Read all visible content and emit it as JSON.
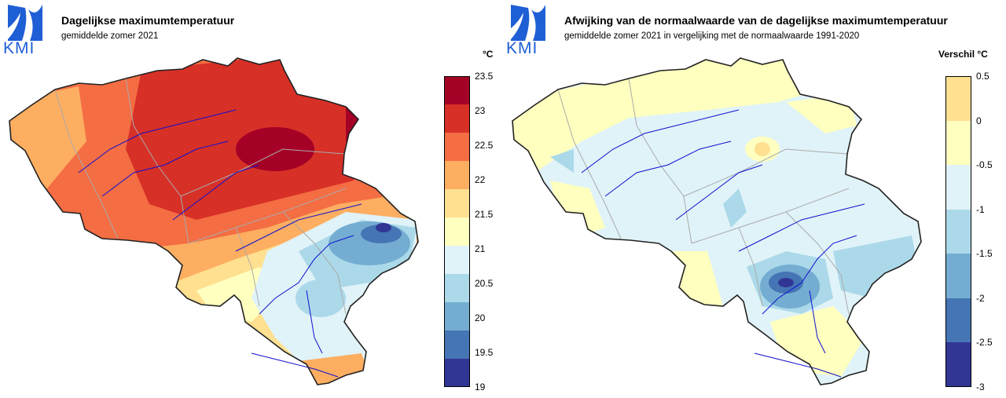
{
  "left_panel": {
    "logo_text": "KMI",
    "title": "Dagelijkse maximumtemperatuur",
    "subtitle": "gemiddelde zomer 2021",
    "unit": "°C",
    "legend": {
      "ticks": [
        "23.5",
        "23",
        "22.5",
        "22",
        "21.5",
        "21",
        "20.5",
        "20",
        "19.5",
        "19"
      ],
      "colors": [
        "#a50026",
        "#d73027",
        "#f46d43",
        "#fdae61",
        "#fee090",
        "#ffffbf",
        "#e0f3f8",
        "#abd9e9",
        "#74add1",
        "#4575b4",
        "#313695"
      ]
    }
  },
  "right_panel": {
    "logo_text": "KMI",
    "title": "Afwijking van de normaalwaarde van de dagelijkse maximumtemperatuur",
    "subtitle": "gemiddelde zomer 2021 in vergelijking met de normaalwaarde 1991-2020",
    "unit": "Verschil °C",
    "legend": {
      "ticks": [
        "0.5",
        "0",
        "-0.5",
        "-1",
        "-1.5",
        "-2",
        "-2.5",
        "-3"
      ],
      "colors": [
        "#fee090",
        "#ffffbf",
        "#e0f3f8",
        "#abd9e9",
        "#74add1",
        "#4575b4",
        "#313695"
      ]
    }
  }
}
